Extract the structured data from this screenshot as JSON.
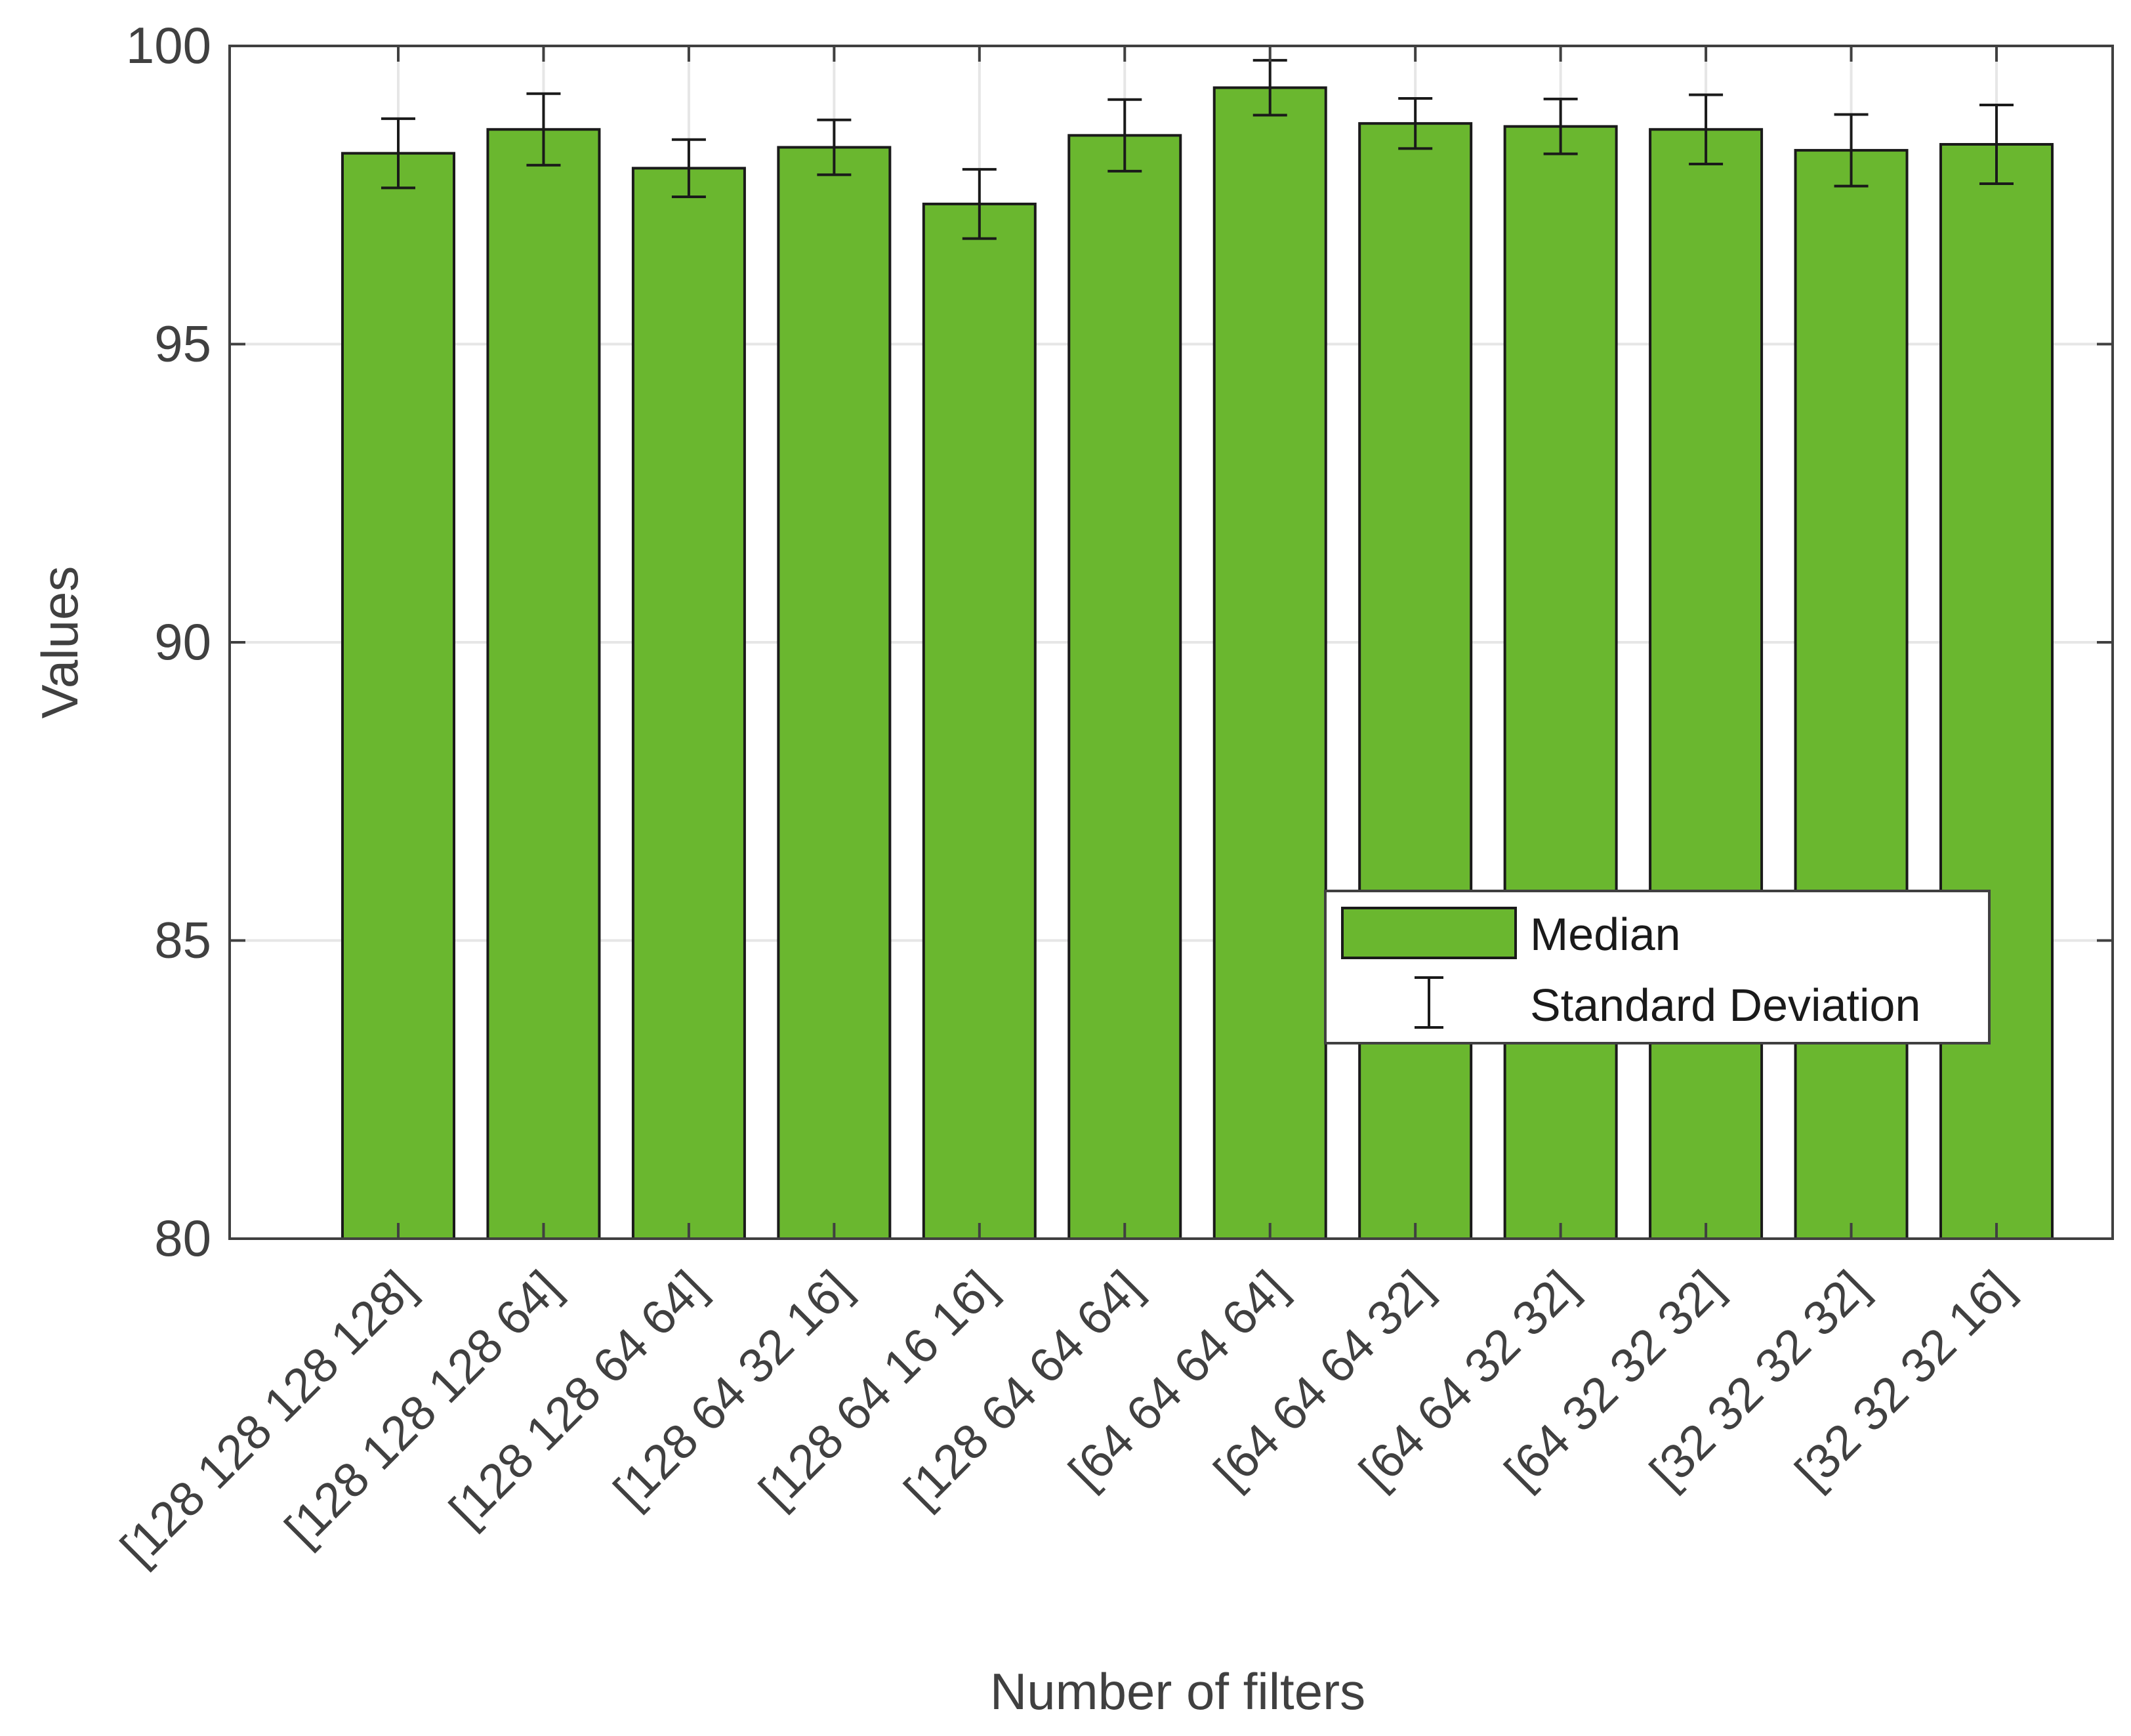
{
  "chart_data": {
    "type": "bar",
    "title": "",
    "xlabel": "Number of filters",
    "ylabel": "Values",
    "ylim": [
      80,
      100
    ],
    "yticks": [
      "80",
      "85",
      "90",
      "95",
      "100"
    ],
    "grid": true,
    "legend_position": "right, lower-middle",
    "categories": [
      "[128 128 128 128]",
      "[128 128 128 64]",
      "[128 128 64 64]",
      "[128 64 32 16]",
      "[128 64 16 16]",
      "[128 64 64 64]",
      "[64 64 64 64]",
      "[64 64 64 32]",
      "[64 64 32 32]",
      "[64 32 32 32]",
      "[32 32 32 32]",
      "[32 32 32 16]"
    ],
    "series": [
      {
        "name": "Median",
        "values": [
          98.2,
          98.6,
          97.95,
          98.3,
          97.35,
          98.5,
          99.3,
          98.7,
          98.65,
          98.6,
          98.25,
          98.35
        ]
      }
    ],
    "error_bars": {
      "name": "Standard Deviation",
      "values": [
        0.58,
        0.6,
        0.48,
        0.46,
        0.58,
        0.6,
        0.46,
        0.42,
        0.46,
        0.58,
        0.6,
        0.66
      ]
    },
    "colors": {
      "bar_fill": "#6ab72f",
      "bar_edge": "#1a1a1a",
      "axis": "#404040",
      "grid": "#e6e6e6",
      "error_bar": "#1a1a1a"
    }
  }
}
